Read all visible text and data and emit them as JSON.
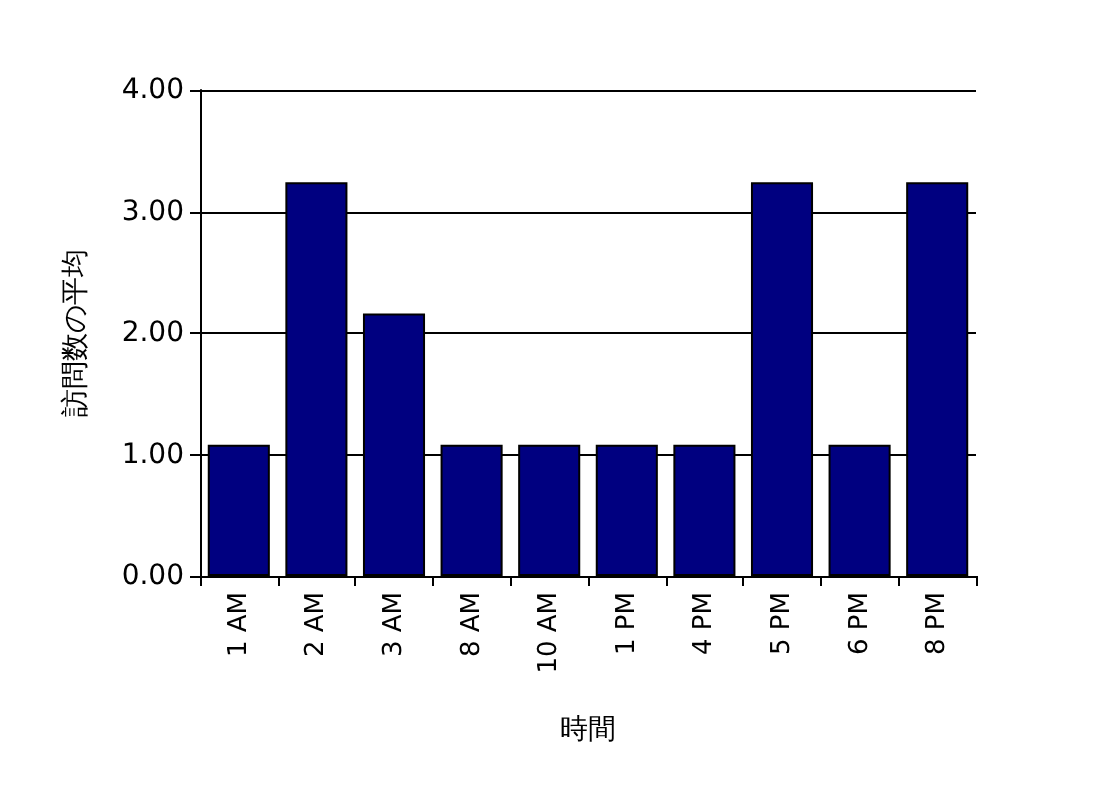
{
  "chart_data": {
    "type": "bar",
    "xlabel": "時間",
    "ylabel": "訪問数の平均",
    "categories": [
      "1 AM",
      "2 AM",
      "3 AM",
      "8 AM",
      "10 AM",
      "1 PM",
      "4 PM",
      "5 PM",
      "6 PM",
      "8 PM"
    ],
    "values": [
      1.08,
      3.24,
      2.16,
      1.08,
      1.08,
      1.08,
      1.08,
      3.24,
      1.08,
      3.24
    ],
    "color": "#000080",
    "ylim": [
      0,
      4
    ],
    "yticks": [
      {
        "value": 0,
        "label": "0.00"
      },
      {
        "value": 1,
        "label": "1.00"
      },
      {
        "value": 2,
        "label": "2.00"
      },
      {
        "value": 3,
        "label": "3.00"
      },
      {
        "value": 4,
        "label": "4.00"
      }
    ],
    "grid": "y"
  }
}
